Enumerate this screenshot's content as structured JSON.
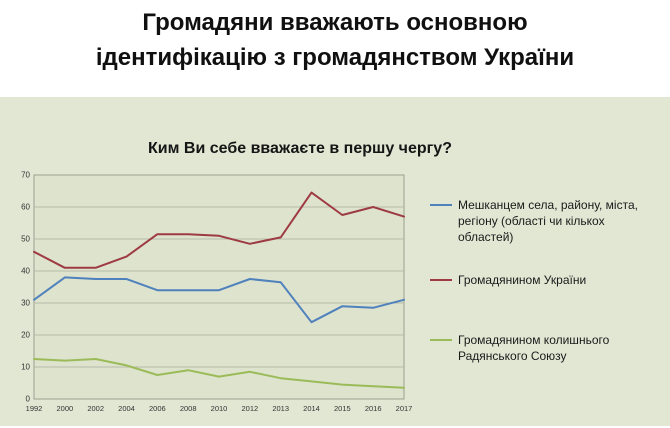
{
  "page": {
    "title_line1": "Громадяни вважають основною",
    "title_line2": "ідентифікацію з громадянством України",
    "panel_bg": "#e2e7d4"
  },
  "chart_data": {
    "type": "line",
    "title": "Ким Ви себе вважаєте в першу чергу?",
    "categories": [
      "1992",
      "2000",
      "2002",
      "2004",
      "2006",
      "2008",
      "2010",
      "2012",
      "2013",
      "2014",
      "2015",
      "2016",
      "2017"
    ],
    "ylim": [
      0,
      70
    ],
    "yticks": [
      0,
      10,
      20,
      30,
      40,
      50,
      60,
      70
    ],
    "grid": true,
    "legend_position": "right",
    "plot_bg": "#dde3cd",
    "grid_color": "#b6bba9",
    "border_color": "#9aa08e",
    "tick_label_color": "#333333",
    "series": [
      {
        "name": "Мешканцем села, району, міста, регіону (області чи кількох областей)",
        "color": "#4f81bd",
        "values": [
          31,
          38,
          37.5,
          37.5,
          34,
          34,
          34,
          37.5,
          36.5,
          24,
          29,
          28.5,
          31
        ]
      },
      {
        "name": "Громадянином України",
        "color": "#9e3a42",
        "values": [
          46,
          41,
          41,
          44.5,
          51.5,
          51.5,
          51,
          48.5,
          50.5,
          64.5,
          57.5,
          60,
          57
        ]
      },
      {
        "name": "Громадянином колишнього Радянського Союзу",
        "color": "#9bbb59",
        "values": [
          12.5,
          12,
          12.5,
          10.5,
          7.5,
          9,
          7,
          8.5,
          6.5,
          5.5,
          4.5,
          4,
          3.5
        ]
      }
    ]
  }
}
